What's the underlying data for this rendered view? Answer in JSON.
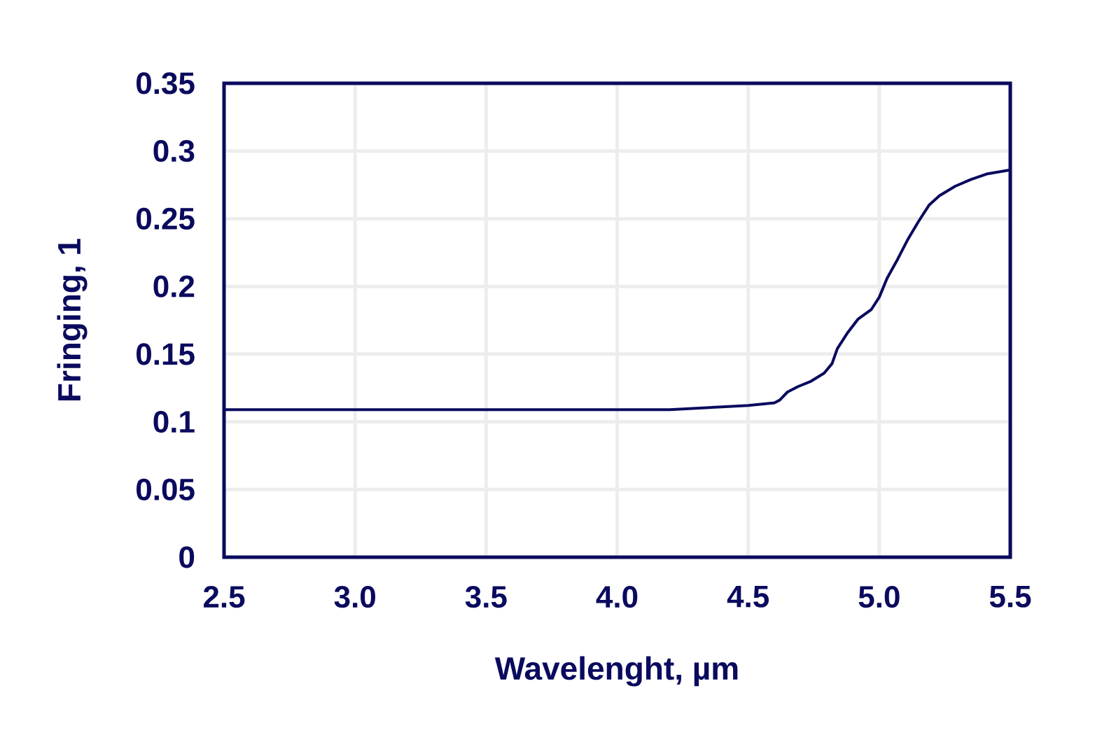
{
  "chart_data": {
    "type": "line",
    "xlabel": "Wavelenght, µm",
    "ylabel": "Fringing, 1",
    "x": [
      2.5,
      3.0,
      3.5,
      4.0,
      4.1,
      4.2,
      4.3,
      4.4,
      4.5,
      4.6,
      4.62,
      4.65,
      4.69,
      4.74,
      4.79,
      4.82,
      4.84,
      4.88,
      4.92,
      4.97,
      5.0,
      5.03,
      5.07,
      5.11,
      5.15,
      5.19,
      5.23,
      5.29,
      5.35,
      5.41,
      5.5
    ],
    "values": [
      0.109,
      0.109,
      0.109,
      0.109,
      0.109,
      0.109,
      0.11,
      0.111,
      0.112,
      0.114,
      0.116,
      0.122,
      0.126,
      0.13,
      0.136,
      0.143,
      0.154,
      0.166,
      0.176,
      0.183,
      0.192,
      0.206,
      0.22,
      0.235,
      0.248,
      0.26,
      0.267,
      0.274,
      0.279,
      0.283,
      0.286
    ],
    "color": "#0a0a5e",
    "xlim": [
      2.5,
      5.5
    ],
    "ylim": [
      0,
      0.35
    ],
    "xticks": [
      2.5,
      {
        "value": 3,
        "label": "3.0"
      },
      3.5,
      {
        "value": 4,
        "label": "4.0"
      },
      4.5,
      {
        "value": 5,
        "label": "5.0"
      },
      5.5
    ],
    "yticks": [
      0,
      0.05,
      0.1,
      0.15,
      0.2,
      0.25,
      0.3,
      0.35
    ],
    "grid": true
  }
}
